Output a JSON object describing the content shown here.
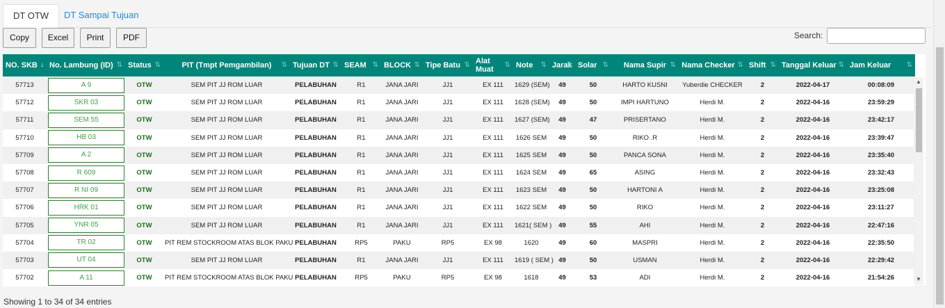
{
  "tabs": [
    {
      "label": "DT OTW",
      "active": true
    },
    {
      "label": "DT Sampai Tujuan",
      "active": false
    }
  ],
  "toolbar": {
    "copy": "Copy",
    "excel": "Excel",
    "print": "Print",
    "pdf": "PDF"
  },
  "search": {
    "label": "Search:",
    "value": "",
    "placeholder": ""
  },
  "table": {
    "columns": [
      {
        "label": "NO. SKB",
        "sort": "desc"
      },
      {
        "label": "No. Lambung (ID)",
        "sort": "both"
      },
      {
        "label": "Status",
        "sort": "both"
      },
      {
        "label": "PIT (Tmpt Pemgambilan)",
        "sort": "both"
      },
      {
        "label": "Tujuan DT",
        "sort": "both"
      },
      {
        "label": "SEAM",
        "sort": "both"
      },
      {
        "label": "BLOCK",
        "sort": "both"
      },
      {
        "label": "Tipe Batu",
        "sort": "both"
      },
      {
        "label": "Alat Muat",
        "sort": "both"
      },
      {
        "label": "Note",
        "sort": "both"
      },
      {
        "label": "Jarak",
        "sort": "both"
      },
      {
        "label": "Solar",
        "sort": "both"
      },
      {
        "label": "Nama Supir",
        "sort": "both"
      },
      {
        "label": "Nama Checker",
        "sort": "both"
      },
      {
        "label": "Shift",
        "sort": "both"
      },
      {
        "label": "Tanggal Keluar",
        "sort": "both"
      },
      {
        "label": "Jam Keluar",
        "sort": "both"
      }
    ],
    "rows": [
      [
        "57713",
        "A 9",
        "OTW",
        "SEM PIT JJ ROM LUAR",
        "PELABUHAN",
        "R1",
        "JANA JARI",
        "JJ1",
        "EX 111",
        "1629 (SEM)",
        "49",
        "50",
        "HARTO KUSNI",
        "Yuberdie CHECKER",
        "2",
        "2022-04-17",
        "00:08:09"
      ],
      [
        "57712",
        "SKR 03",
        "OTW",
        "SEM PIT JJ ROM LUAR",
        "PELABUHAN",
        "R1",
        "JANA JARI",
        "JJ1",
        "EX 111",
        "1628 (SEM)",
        "49",
        "50",
        "IMPI HARTUNO",
        "Herdi M.",
        "2",
        "2022-04-16",
        "23:59:29"
      ],
      [
        "57711",
        "SEM 55",
        "OTW",
        "SEM PIT JJ ROM LUAR",
        "PELABUHAN",
        "R1",
        "JANA JARI",
        "JJ1",
        "EX 111",
        "1627 (SEM)",
        "49",
        "47",
        "PRISERTANO",
        "Herdi M.",
        "2",
        "2022-04-16",
        "23:42:17"
      ],
      [
        "57710",
        "HB 03",
        "OTW",
        "SEM PIT JJ ROM LUAR",
        "PELABUHAN",
        "R1",
        "JANA JARI",
        "JJ1",
        "EX 111",
        "1626 SEM",
        "49",
        "50",
        "RIKO .R",
        "Herdi M.",
        "2",
        "2022-04-16",
        "23:39:47"
      ],
      [
        "57709",
        "A 2",
        "OTW",
        "SEM PIT JJ ROM LUAR",
        "PELABUHAN",
        "R1",
        "JANA JARI",
        "JJ1",
        "EX 111",
        "1625 SEM",
        "49",
        "50",
        "PANCA SONA",
        "Herdi M.",
        "2",
        "2022-04-16",
        "23:35:40"
      ],
      [
        "57708",
        "R 609",
        "OTW",
        "SEM PIT JJ ROM LUAR",
        "PELABUHAN",
        "R1",
        "JANA JARI",
        "JJ1",
        "EX 111",
        "1624 SEM",
        "49",
        "65",
        "ASING",
        "Herdi M.",
        "2",
        "2022-04-16",
        "23:32:43"
      ],
      [
        "57707",
        "R NI 09",
        "OTW",
        "SEM PIT JJ ROM LUAR",
        "PELABUHAN",
        "R1",
        "JANA JARI",
        "JJ1",
        "EX 111",
        "1623 SEM",
        "49",
        "50",
        "HARTONI A",
        "Herdi M.",
        "2",
        "2022-04-16",
        "23:25:08"
      ],
      [
        "57706",
        "HRK 01",
        "OTW",
        "SEM PIT JJ ROM LUAR",
        "PELABUHAN",
        "R1",
        "JANA JARI",
        "JJ1",
        "EX 111",
        "1622 SEM",
        "49",
        "50",
        "RIKO",
        "Herdi M.",
        "2",
        "2022-04-16",
        "23:11:27"
      ],
      [
        "57705",
        "YNR 05",
        "OTW",
        "SEM PIT JJ ROM LUAR",
        "PELABUHAN",
        "R1",
        "JANA JARI",
        "JJ1",
        "EX 111",
        "1621( SEM )",
        "49",
        "55",
        "AHI",
        "Herdi M.",
        "2",
        "2022-04-16",
        "22:47:16"
      ],
      [
        "57704",
        "TR 02",
        "OTW",
        "PIT REM STOCKROOM ATAS BLOK PAKU",
        "PELABUHAN",
        "RP5",
        "PAKU",
        "RP5",
        "EX 98",
        "1620",
        "49",
        "60",
        "MASPRI",
        "Herdi M.",
        "2",
        "2022-04-16",
        "22:35:50"
      ],
      [
        "57703",
        "UT 04",
        "OTW",
        "SEM PIT JJ ROM LUAR",
        "PELABUHAN",
        "R1",
        "JANA JARI",
        "JJ1",
        "EX 111",
        "1619 ( SEM )",
        "49",
        "50",
        "USMAN",
        "Herdi M.",
        "2",
        "2022-04-16",
        "22:29:42"
      ],
      [
        "57702",
        "A 11",
        "OTW",
        "PIT REM STOCKROOM ATAS BLOK PAKU",
        "PELABUHAN",
        "RP5",
        "PAKU",
        "RP5",
        "EX 98",
        "1618",
        "49",
        "53",
        "ADI",
        "Herdi M.",
        "2",
        "2022-04-16",
        "21:54:26"
      ]
    ]
  },
  "footer": {
    "info": "Showing 1 to 34 of 34 entries"
  },
  "icons": {
    "sort_desc": "sort-desc-icon",
    "sort_both": "sort-both-icon",
    "scroll_up": "scroll-up-icon",
    "scroll_down": "scroll-down-icon"
  },
  "colors": {
    "header_bg": "#00857a",
    "lambung_border": "#2e7d32",
    "lambung_text": "#43a047",
    "status_text": "#1b6e1b",
    "tab_link": "#1e88e5"
  }
}
